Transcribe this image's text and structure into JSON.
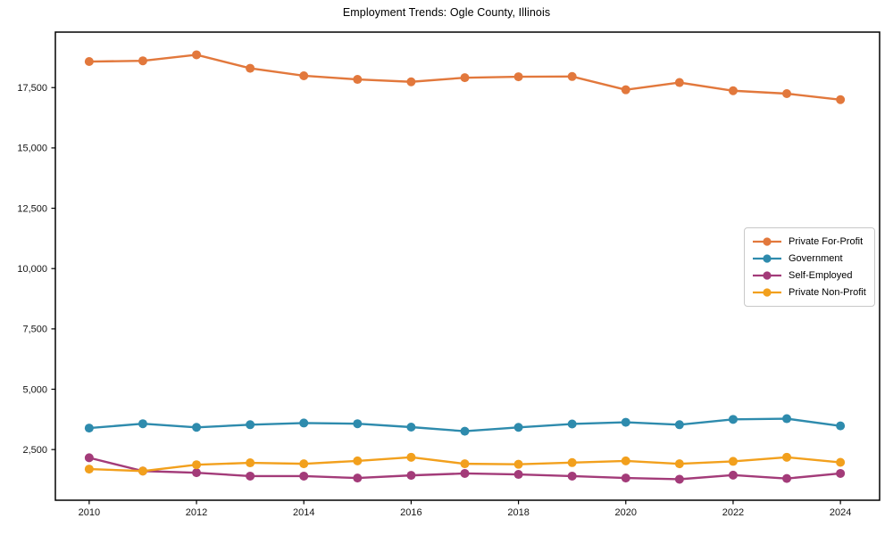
{
  "chart_data": {
    "type": "line",
    "title": "Employment Trends: Ogle County, Illinois",
    "xlabel": "",
    "ylabel": "",
    "x": [
      2010,
      2011,
      2012,
      2013,
      2014,
      2015,
      2016,
      2017,
      2018,
      2019,
      2020,
      2021,
      2022,
      2023,
      2024
    ],
    "series": [
      {
        "name": "Private For-Profit",
        "color": "#E2783C",
        "values": [
          18580,
          18610,
          18860,
          18300,
          17990,
          17840,
          17740,
          17910,
          17950,
          17960,
          17410,
          17710,
          17370,
          17250,
          17000
        ]
      },
      {
        "name": "Government",
        "color": "#2E8BAD",
        "values": [
          3390,
          3570,
          3420,
          3530,
          3600,
          3570,
          3430,
          3260,
          3420,
          3560,
          3630,
          3530,
          3750,
          3780,
          3480
        ]
      },
      {
        "name": "Self-Employed",
        "color": "#A33B79",
        "values": [
          2160,
          1610,
          1540,
          1400,
          1400,
          1320,
          1430,
          1510,
          1470,
          1400,
          1320,
          1270,
          1440,
          1300,
          1510
        ]
      },
      {
        "name": "Private Non-Profit",
        "color": "#F2A01D",
        "values": [
          1690,
          1610,
          1870,
          1950,
          1910,
          2030,
          2180,
          1910,
          1890,
          1960,
          2030,
          1910,
          2010,
          2180,
          1970
        ]
      }
    ],
    "xticks": [
      2010,
      2012,
      2014,
      2016,
      2018,
      2020,
      2022,
      2024
    ],
    "xtick_labels": [
      "2010",
      "2012",
      "2014",
      "2016",
      "2018",
      "2020",
      "2022",
      "2024"
    ],
    "yticks": [
      2500,
      5000,
      7500,
      10000,
      12500,
      15000,
      17500
    ],
    "ytick_labels": [
      "2,500",
      "5,000",
      "7,500",
      "10,000",
      "12,500",
      "15,000",
      "17,500"
    ],
    "xlim": [
      2009.37,
      2024.73
    ],
    "ylim": [
      400,
      19800
    ],
    "grid": false,
    "legend_position": "center-right"
  },
  "style": {
    "spine_color": "#000000",
    "tick_color": "#000000",
    "text_color": "#141414",
    "background": "#ffffff"
  }
}
